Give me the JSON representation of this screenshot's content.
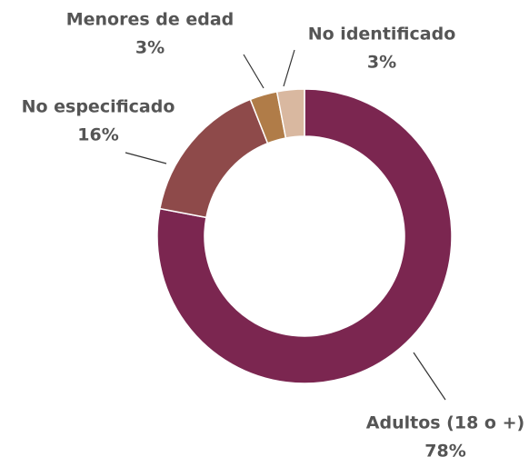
{
  "chart_data": {
    "type": "donut",
    "categories": [
      "Adultos (18 o +)",
      "No especificado",
      "Menores de edad",
      "No identificado"
    ],
    "values": [
      78,
      16,
      3,
      3
    ],
    "value_labels": [
      "78%",
      "16%",
      "3%",
      "3%"
    ],
    "colors": [
      "#7b2650",
      "#8e4a4a",
      "#b07c48",
      "#d9b8a0"
    ]
  }
}
